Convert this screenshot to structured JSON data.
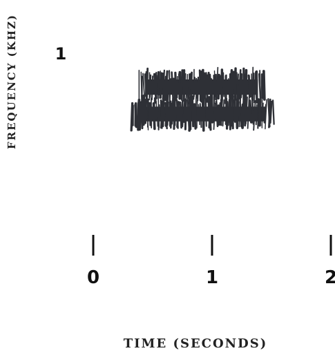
{
  "chart_data": {
    "type": "spectrogram",
    "title": "",
    "xlabel": "TIME (SECONDS)",
    "ylabel": "FREQUENCY (KHZ)",
    "xlim": [
      0,
      2
    ],
    "x_ticks": [
      0,
      1,
      2
    ],
    "x_tick_labels": [
      "0",
      "1",
      "2"
    ],
    "ylim": [
      0,
      1
    ],
    "y_tick_labels": [
      "1"
    ],
    "y_tick_values": [
      1
    ],
    "grid": false,
    "ink_color": "#2e3036",
    "energy_regions": [
      {
        "band": "upper",
        "t_start": 0.38,
        "t_end": 1.45,
        "f_low": 0.98,
        "f_high": 1.25
      },
      {
        "band": "lower",
        "t_start": 0.32,
        "t_end": 1.52,
        "f_low": 0.72,
        "f_high": 0.98
      }
    ]
  }
}
